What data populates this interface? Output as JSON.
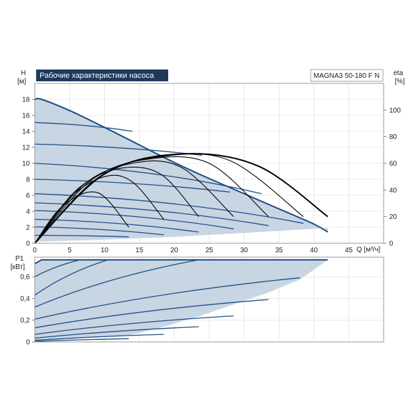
{
  "header": {
    "title": "Рабочие характеристики насоса",
    "model": "MAGNA3 50-180 F N"
  },
  "colors": {
    "curve": "#1f4e86",
    "fill": "#c8d5e3",
    "eta": "#000000",
    "title_bg": "#1d3a5c",
    "title_text": "#ffffff"
  },
  "chart_data": [
    {
      "type": "line",
      "name": "head",
      "ylabel": "H",
      "yunit": "[м]",
      "y2label": "eta",
      "y2unit": "[%]",
      "xlabel": "Q [м³/ч]",
      "xlim": [
        0,
        50
      ],
      "ylim": [
        0,
        20
      ],
      "y2lim": [
        0,
        120
      ],
      "x_ticks": [
        0,
        5,
        10,
        15,
        20,
        25,
        30,
        35,
        40,
        45
      ],
      "y_ticks": [
        0,
        2,
        4,
        6,
        8,
        10,
        12,
        14,
        16,
        18
      ],
      "y2_ticks": [
        0,
        20,
        40,
        60,
        80,
        100
      ],
      "grid": true,
      "max_curve": [
        [
          0,
          18
        ],
        [
          1,
          18
        ],
        [
          5,
          16.6
        ],
        [
          10,
          14.5
        ],
        [
          15,
          12.3
        ],
        [
          20,
          10.1
        ],
        [
          25,
          8.1
        ],
        [
          30,
          6.2
        ],
        [
          35,
          4.3
        ],
        [
          40,
          2.4
        ],
        [
          42,
          1.4
        ]
      ],
      "min_curve": [
        [
          0,
          0.2
        ],
        [
          10,
          0.45
        ],
        [
          20,
          0.8
        ],
        [
          30,
          1.3
        ],
        [
          42,
          1.9
        ]
      ],
      "speed_curves": [
        {
          "x": [
            0,
            13.5
          ],
          "y": [
            1.0,
            0.8
          ]
        },
        {
          "x": [
            0,
            18.5
          ],
          "y": [
            2.05,
            1.05
          ]
        },
        {
          "x": [
            0,
            23.5
          ],
          "y": [
            3.0,
            1.4
          ]
        },
        {
          "x": [
            0,
            28.5
          ],
          "y": [
            4.1,
            1.8
          ]
        },
        {
          "x": [
            0,
            33.5
          ],
          "y": [
            5.05,
            2.2
          ]
        },
        {
          "x": [
            0,
            38.5
          ],
          "y": [
            6.2,
            2.5
          ]
        },
        {
          "x": [
            0,
            28.0
          ],
          "y": [
            8.0,
            6.4
          ]
        },
        {
          "x": [
            0,
            32.5
          ],
          "y": [
            10.0,
            6.2
          ]
        },
        {
          "x": [
            0,
            24.0
          ],
          "y": [
            12.4,
            11.0
          ]
        },
        {
          "x": [
            0,
            14.0
          ],
          "y": [
            15.1,
            14.0
          ]
        }
      ],
      "eta_curves": [
        {
          "x": [
            0,
            4,
            9,
            13.5
          ],
          "y": [
            0,
            28,
            38,
            12
          ]
        },
        {
          "x": [
            0,
            5,
            10,
            14,
            18.5
          ],
          "y": [
            0,
            34,
            50,
            46,
            18
          ]
        },
        {
          "x": [
            0,
            6,
            12,
            18,
            23.5
          ],
          "y": [
            0,
            40,
            56,
            52,
            20
          ]
        },
        {
          "x": [
            0,
            7,
            14,
            21,
            28.5
          ],
          "y": [
            0,
            44,
            60,
            57,
            20
          ]
        },
        {
          "x": [
            0,
            8,
            16,
            25,
            33.5
          ],
          "y": [
            0,
            47,
            63,
            60,
            20
          ]
        },
        {
          "x": [
            0,
            9,
            18,
            28,
            38.5
          ],
          "y": [
            0,
            49,
            65,
            62,
            20
          ]
        },
        {
          "x": [
            0,
            10,
            21,
            32,
            42
          ],
          "y": [
            0,
            52,
            67,
            58,
            20
          ]
        }
      ]
    },
    {
      "type": "line",
      "name": "power",
      "ylabel": "P1",
      "yunit": "[кВт]",
      "xlim": [
        0,
        50
      ],
      "ylim": [
        0,
        0.78
      ],
      "y_ticks": [
        "0",
        "0,2",
        "0,4",
        "0,6"
      ],
      "y_tick_values": [
        0,
        0.2,
        0.4,
        0.6
      ],
      "grid": true,
      "max_curve": [
        [
          0,
          0.72
        ],
        [
          1,
          0.755
        ],
        [
          42,
          0.755
        ]
      ],
      "min_curve": [
        [
          0,
          0.01
        ],
        [
          20,
          0.04
        ],
        [
          42,
          0.06
        ]
      ],
      "power_fill_top": [
        [
          0,
          0.72
        ],
        [
          1,
          0.755
        ],
        [
          42,
          0.755
        ],
        [
          38,
          0.58
        ],
        [
          33.5,
          0.47
        ],
        [
          28.5,
          0.37
        ],
        [
          23.5,
          0.25
        ],
        [
          18.5,
          0.14
        ],
        [
          13.5,
          0.03
        ]
      ],
      "power_curves": [
        {
          "x": [
            0,
            6.5
          ],
          "y": [
            0.6,
            0.755
          ]
        },
        {
          "x": [
            0,
            10.5
          ],
          "y": [
            0.43,
            0.755
          ]
        },
        {
          "x": [
            0,
            23.5
          ],
          "y": [
            0.32,
            0.755
          ]
        },
        {
          "x": [
            0,
            38.0
          ],
          "y": [
            0.21,
            0.59
          ]
        },
        {
          "x": [
            0,
            33.5
          ],
          "y": [
            0.13,
            0.39
          ]
        },
        {
          "x": [
            0,
            28.5
          ],
          "y": [
            0.07,
            0.24
          ]
        },
        {
          "x": [
            0,
            23.5
          ],
          "y": [
            0.035,
            0.14
          ]
        },
        {
          "x": [
            0,
            18.5
          ],
          "y": [
            0.015,
            0.07
          ]
        },
        {
          "x": [
            0,
            13.5
          ],
          "y": [
            0.005,
            0.03
          ]
        }
      ]
    }
  ]
}
